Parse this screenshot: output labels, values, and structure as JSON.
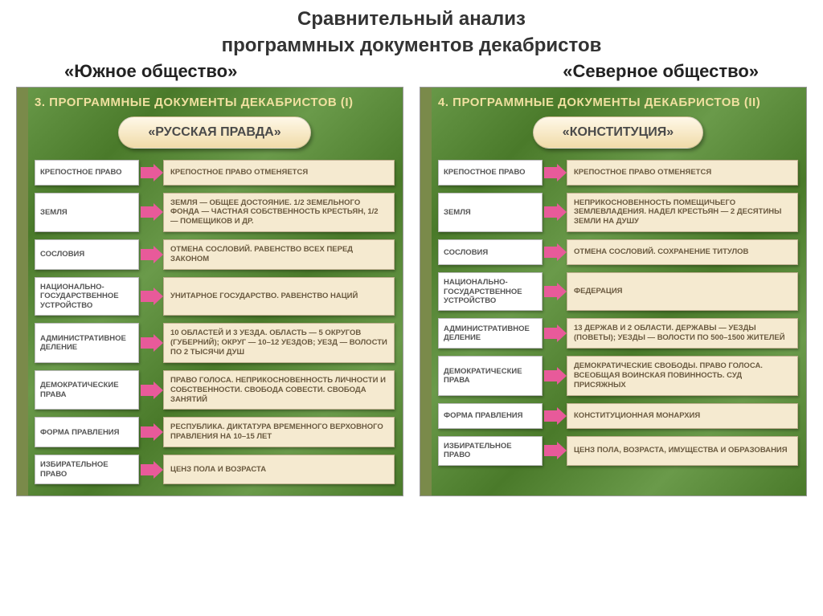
{
  "title_line1": "Сравнительный анализ",
  "title_line2": "программных документов декабристов",
  "colors": {
    "panel_bg": "#5a8a3a",
    "panel_texture": "linear-gradient(135deg,#6a9a4a 0%,#4a7a2a 20%,#6a9a4a 40%,#4a7a2a 60%,#6a9a4a 80%,#4a7a2a 100%)",
    "doc_title_bg": "linear-gradient(#fff8e8,#f0dba8)",
    "arrow_color": "#e85a9a",
    "value_bg": "#f5ead0",
    "header_color": "#f0e0a0"
  },
  "left": {
    "subtitle": "«Южное общество»",
    "header": "3. ПРОГРАММНЫЕ ДОКУМЕНТЫ ДЕКАБРИСТОВ (I)",
    "doc_title": "«РУССКАЯ ПРАВДА»",
    "rows": [
      {
        "label": "КРЕПОСТНОЕ ПРАВО",
        "value": "КРЕПОСТНОЕ ПРАВО ОТМЕНЯЕТСЯ"
      },
      {
        "label": "ЗЕМЛЯ",
        "value": "ЗЕМЛЯ — ОБЩЕЕ ДОСТОЯНИЕ. 1/2 ЗЕМЕЛЬНОГО ФОНДА — ЧАСТНАЯ СОБСТВЕННОСТЬ КРЕСТЬЯН, 1/2 — ПОМЕЩИКОВ И ДР."
      },
      {
        "label": "СОСЛОВИЯ",
        "value": "ОТМЕНА СОСЛОВИЙ. РАВЕНСТВО ВСЕХ ПЕРЕД ЗАКОНОМ"
      },
      {
        "label": "НАЦИОНАЛЬНО-ГОСУДАРСТВЕННОЕ УСТРОЙСТВО",
        "value": "УНИТАРНОЕ ГОСУДАРСТВО. РАВЕНСТВО НАЦИЙ"
      },
      {
        "label": "АДМИНИСТРАТИВНОЕ ДЕЛЕНИЕ",
        "value": "10 ОБЛАСТЕЙ И 3 УЕЗДА. ОБЛАСТЬ — 5 ОКРУГОВ (ГУБЕРНИЙ); ОКРУГ — 10–12 УЕЗДОВ; УЕЗД — ВОЛОСТИ ПО 2 ТЫСЯЧИ ДУШ"
      },
      {
        "label": "ДЕМОКРАТИЧЕСКИЕ ПРАВА",
        "value": "ПРАВО ГОЛОСА. НЕПРИКОСНОВЕННОСТЬ ЛИЧНОСТИ И СОБСТВЕННОСТИ. СВОБОДА СОВЕСТИ. СВОБОДА ЗАНЯТИЙ"
      },
      {
        "label": "ФОРМА ПРАВЛЕНИЯ",
        "value": "РЕСПУБЛИКА. ДИКТАТУРА ВРЕМЕННОГО ВЕРХОВНОГО ПРАВЛЕНИЯ НА 10–15 ЛЕТ"
      },
      {
        "label": "ИЗБИРАТЕЛЬНОЕ ПРАВО",
        "value": "ЦЕНЗ ПОЛА И ВОЗРАСТА"
      }
    ]
  },
  "right": {
    "subtitle": "«Северное общество»",
    "header": "4. ПРОГРАММНЫЕ ДОКУМЕНТЫ ДЕКАБРИСТОВ (II)",
    "doc_title": "«КОНСТИТУЦИЯ»",
    "rows": [
      {
        "label": "КРЕПОСТНОЕ ПРАВО",
        "value": "КРЕПОСТНОЕ ПРАВО ОТМЕНЯЕТСЯ"
      },
      {
        "label": "ЗЕМЛЯ",
        "value": "НЕПРИКОСНОВЕННОСТЬ ПОМЕЩИЧЬЕГО ЗЕМЛЕВЛАДЕНИЯ. НАДЕЛ КРЕСТЬЯН — 2 ДЕСЯТИНЫ ЗЕМЛИ НА ДУШУ"
      },
      {
        "label": "СОСЛОВИЯ",
        "value": "ОТМЕНА СОСЛОВИЙ. СОХРАНЕНИЕ ТИТУЛОВ"
      },
      {
        "label": "НАЦИОНАЛЬНО-ГОСУДАРСТВЕННОЕ УСТРОЙСТВО",
        "value": "ФЕДЕРАЦИЯ"
      },
      {
        "label": "АДМИНИСТРАТИВНОЕ ДЕЛЕНИЕ",
        "value": "13 ДЕРЖАВ И 2 ОБЛАСТИ. ДЕРЖАВЫ — УЕЗДЫ (ПОВЕТЫ); УЕЗДЫ — ВОЛОСТИ ПО 500–1500 ЖИТЕЛЕЙ"
      },
      {
        "label": "ДЕМОКРАТИЧЕСКИЕ ПРАВА",
        "value": "ДЕМОКРАТИЧЕСКИЕ СВОБОДЫ. ПРАВО ГОЛОСА. ВСЕОБЩАЯ ВОИНСКАЯ ПОВИННОСТЬ. СУД ПРИСЯЖНЫХ"
      },
      {
        "label": "ФОРМА ПРАВЛЕНИЯ",
        "value": "КОНСТИТУЦИОННАЯ МОНАРХИЯ"
      },
      {
        "label": "ИЗБИРАТЕЛЬНОЕ ПРАВО",
        "value": "ЦЕНЗ ПОЛА, ВОЗРАСТА, ИМУЩЕСТВА И ОБРАЗОВАНИЯ"
      }
    ]
  }
}
